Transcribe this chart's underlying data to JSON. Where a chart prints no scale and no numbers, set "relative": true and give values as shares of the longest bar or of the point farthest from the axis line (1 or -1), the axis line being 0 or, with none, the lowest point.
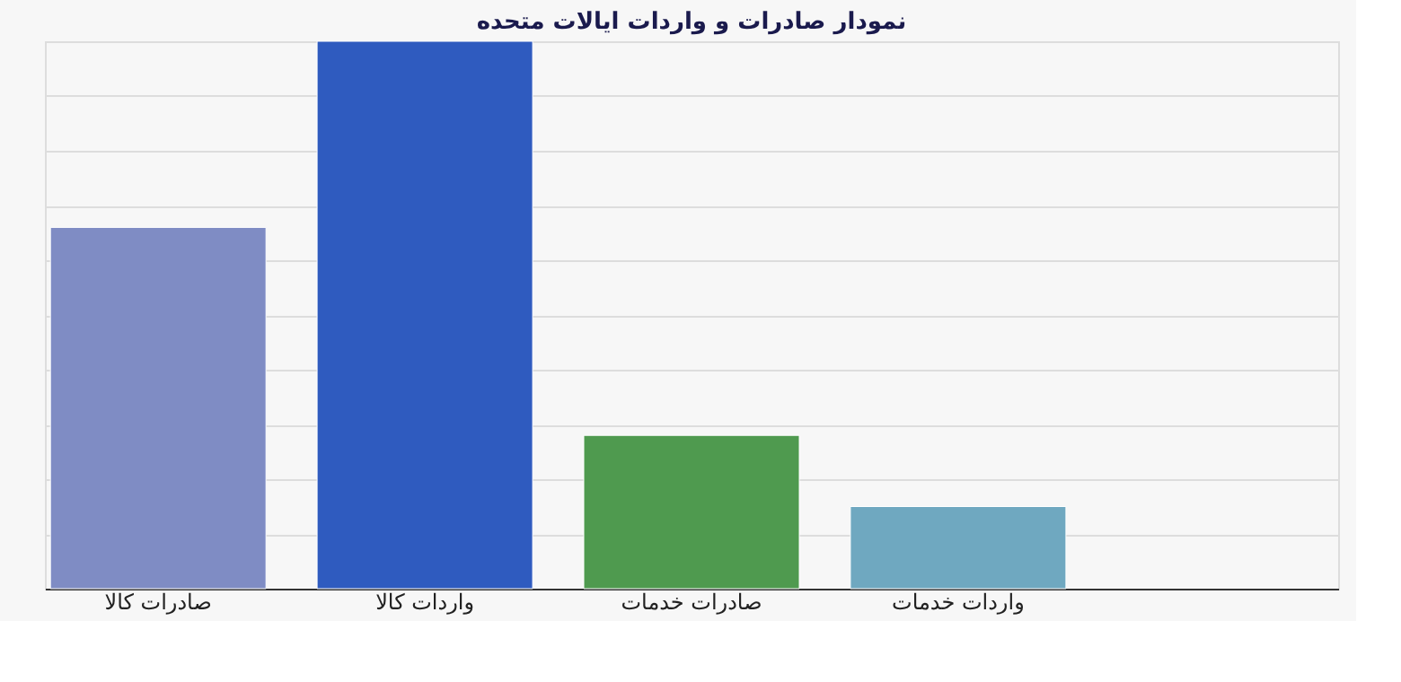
{
  "chart_data": {
    "type": "bar",
    "title": "نمودار صادرات و واردات ایالات متحده",
    "relative": true,
    "categories": [
      "صادرات کالا",
      "واردات کالا",
      "صادرات خدمات",
      "واردات خدمات"
    ],
    "values": [
      0.66,
      1,
      0.28,
      0.15
    ],
    "colors": [
      "#7f8cc4",
      "#2f5bbf",
      "#4f9a4f",
      "#6fa8c0"
    ],
    "grid": "y"
  }
}
